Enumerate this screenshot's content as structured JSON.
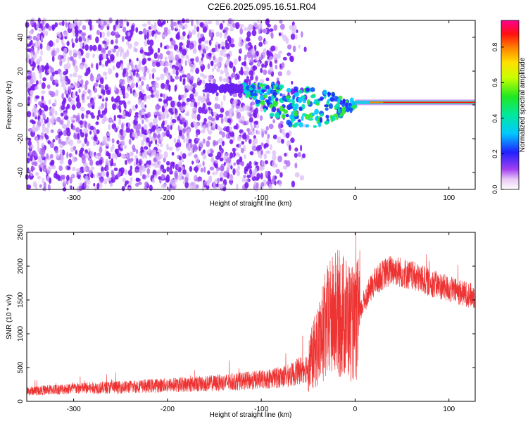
{
  "title": "C2E6.2025.095.16.51.R04",
  "chart_data": [
    {
      "type": "heatmap",
      "xlabel": "Height of straight line (km)",
      "ylabel": "Frequency (Hz)",
      "xlim": [
        -350,
        128
      ],
      "ylim": [
        -50,
        50
      ],
      "xticks": [
        -300,
        -200,
        -100,
        0,
        100
      ],
      "yticks": [
        -40,
        -20,
        0,
        20,
        40
      ],
      "colorbar": {
        "label": "Normalized spectral amplitude",
        "range": [
          0,
          0.95
        ],
        "ticks": [
          0.0,
          0.2,
          0.4,
          0.6,
          0.8
        ]
      },
      "features": {
        "noise_region_x": [
          -350,
          -60
        ],
        "converging_band": {
          "x": [
            -120,
            0
          ],
          "freq_start": 10,
          "freq_end": 0
        },
        "carrier_line": {
          "x": [
            0,
            128
          ],
          "freq": 1.5,
          "amplitude": 0.85
        }
      }
    },
    {
      "type": "line",
      "xlabel": "Height of straight line (km)",
      "ylabel": "SNR (10 * v/v)",
      "xlim": [
        -350,
        128
      ],
      "ylim": [
        0,
        2500
      ],
      "xticks": [
        -300,
        -200,
        -100,
        0,
        100
      ],
      "yticks": [
        0,
        500,
        1000,
        1500,
        2000,
        2500
      ],
      "line_color": "#ee3333",
      "series": [
        {
          "x": [
            -350,
            -300,
            -250,
            -200,
            -150,
            -100,
            -70,
            -50,
            -40,
            -30,
            -20,
            -10,
            0,
            10,
            20,
            30,
            40,
            60,
            80,
            100,
            128
          ],
          "values": [
            150,
            190,
            210,
            240,
            270,
            320,
            380,
            520,
            820,
            1150,
            1300,
            1250,
            1100,
            1500,
            1750,
            1880,
            1950,
            1860,
            1760,
            1660,
            1550
          ]
        }
      ]
    }
  ]
}
